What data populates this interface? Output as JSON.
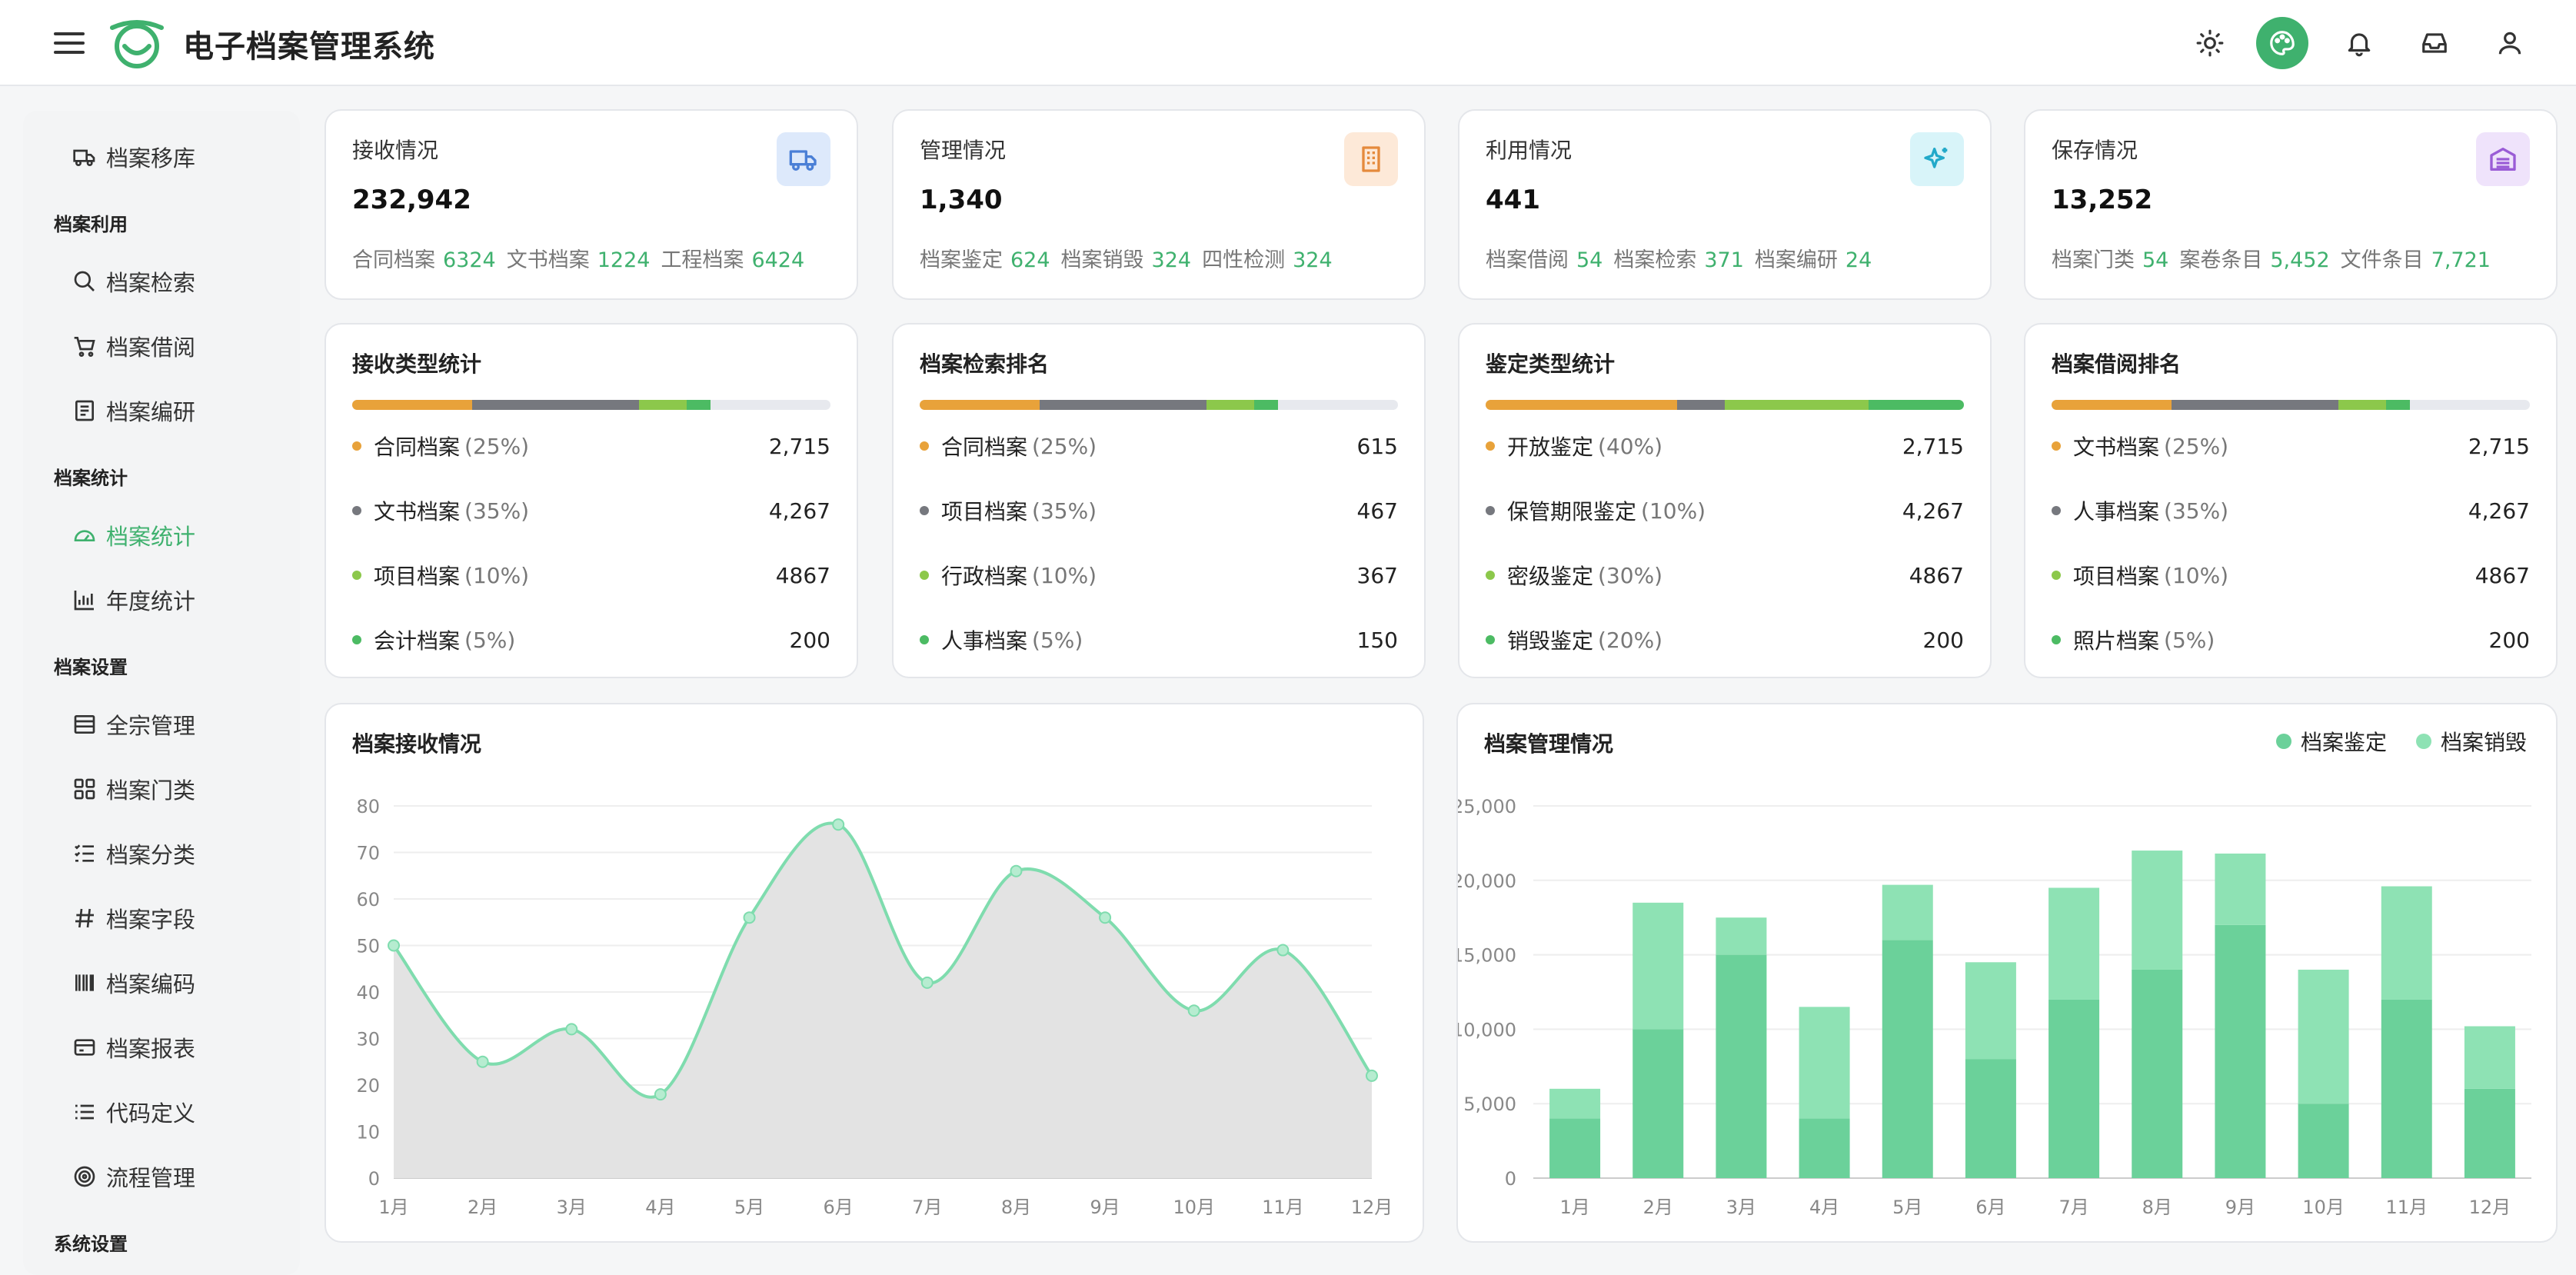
{
  "header": {
    "title": "电子档案管理系统",
    "icons": [
      "menu-icon",
      "logo-icon",
      "sun-icon",
      "palette-icon",
      "bell-icon",
      "inbox-icon",
      "user-icon"
    ]
  },
  "sidebar": {
    "items": [
      {
        "type": "item",
        "label": "档案移库",
        "icon": "truck-icon"
      },
      {
        "type": "group",
        "label": "档案利用"
      },
      {
        "type": "item",
        "label": "档案检索",
        "icon": "search-icon"
      },
      {
        "type": "item",
        "label": "档案借阅",
        "icon": "cart-icon"
      },
      {
        "type": "item",
        "label": "档案编研",
        "icon": "document-icon"
      },
      {
        "type": "group",
        "label": "档案统计"
      },
      {
        "type": "item",
        "label": "档案统计",
        "icon": "dashboard-icon",
        "active": true
      },
      {
        "type": "item",
        "label": "年度统计",
        "icon": "bar-chart-icon"
      },
      {
        "type": "group",
        "label": "档案设置"
      },
      {
        "type": "item",
        "label": "全宗管理",
        "icon": "storage-icon"
      },
      {
        "type": "item",
        "label": "档案门类",
        "icon": "grid-icon"
      },
      {
        "type": "item",
        "label": "档案分类",
        "icon": "list-check-icon"
      },
      {
        "type": "item",
        "label": "档案字段",
        "icon": "hash-icon"
      },
      {
        "type": "item",
        "label": "档案编码",
        "icon": "barcode-icon"
      },
      {
        "type": "item",
        "label": "档案报表",
        "icon": "card-icon"
      },
      {
        "type": "item",
        "label": "代码定义",
        "icon": "list-icon"
      },
      {
        "type": "item",
        "label": "流程管理",
        "icon": "target-icon"
      },
      {
        "type": "group",
        "label": "系统设置"
      }
    ]
  },
  "summary": [
    {
      "title": "接收情况",
      "value": "232,942",
      "icon": "truck-icon",
      "icon_color": "#4a7fd6",
      "icon_bg": "#dde9fb",
      "sub": [
        {
          "label": "合同档案",
          "value": "6324"
        },
        {
          "label": "文书档案",
          "value": "1224"
        },
        {
          "label": "工程档案",
          "value": "6424"
        }
      ]
    },
    {
      "title": "管理情况",
      "value": "1,340",
      "icon": "building-icon",
      "icon_color": "#e58a3c",
      "icon_bg": "#fde9d8",
      "sub": [
        {
          "label": "档案鉴定",
          "value": "624"
        },
        {
          "label": "档案销毁",
          "value": "324"
        },
        {
          "label": "四性检测",
          "value": "324"
        }
      ]
    },
    {
      "title": "利用情况",
      "value": "441",
      "icon": "sparkle-icon",
      "icon_color": "#22a9c9",
      "icon_bg": "#d8f4f9",
      "sub": [
        {
          "label": "档案借阅",
          "value": "54"
        },
        {
          "label": "档案检索",
          "value": "371"
        },
        {
          "label": "档案编研",
          "value": "24"
        }
      ]
    },
    {
      "title": "保存情况",
      "value": "13,252",
      "icon": "warehouse-icon",
      "icon_color": "#9a5cd6",
      "icon_bg": "#efe3fb",
      "sub": [
        {
          "label": "档案门类",
          "value": "54"
        },
        {
          "label": "案卷条目",
          "value": "5,452"
        },
        {
          "label": "文件条目",
          "value": "7,721"
        }
      ]
    }
  ],
  "stats": [
    {
      "title": "接收类型统计",
      "segments": [
        25,
        35,
        10,
        5
      ],
      "rows": [
        {
          "label": "合同档案",
          "pct": "(25%)",
          "value": "2,715"
        },
        {
          "label": "文书档案",
          "pct": "(35%)",
          "value": "4,267"
        },
        {
          "label": "项目档案",
          "pct": "(10%)",
          "value": "4867"
        },
        {
          "label": "会计档案",
          "pct": "(5%)",
          "value": "200"
        }
      ]
    },
    {
      "title": "档案检索排名",
      "segments": [
        25,
        35,
        10,
        5
      ],
      "rows": [
        {
          "label": "合同档案",
          "pct": "(25%)",
          "value": "615"
        },
        {
          "label": "项目档案",
          "pct": "(35%)",
          "value": "467"
        },
        {
          "label": "行政档案",
          "pct": "(10%)",
          "value": "367"
        },
        {
          "label": "人事档案",
          "pct": "(5%)",
          "value": "150"
        }
      ]
    },
    {
      "title": "鉴定类型统计",
      "segments": [
        40,
        10,
        30,
        20
      ],
      "rows": [
        {
          "label": "开放鉴定",
          "pct": "(40%)",
          "value": "2,715"
        },
        {
          "label": "保管期限鉴定",
          "pct": "(10%)",
          "value": "4,267"
        },
        {
          "label": "密级鉴定",
          "pct": "(30%)",
          "value": "4867"
        },
        {
          "label": "销毁鉴定",
          "pct": "(20%)",
          "value": "200"
        }
      ]
    },
    {
      "title": "档案借阅排名",
      "segments": [
        25,
        35,
        10,
        5
      ],
      "rows": [
        {
          "label": "文书档案",
          "pct": "(25%)",
          "value": "2,715"
        },
        {
          "label": "人事档案",
          "pct": "(35%)",
          "value": "4,267"
        },
        {
          "label": "项目档案",
          "pct": "(10%)",
          "value": "4867"
        },
        {
          "label": "照片档案",
          "pct": "(5%)",
          "value": "200"
        }
      ]
    }
  ],
  "colors": {
    "seg": [
      "#e8a23a",
      "#76787e",
      "#8cc84b",
      "#4cbb63"
    ],
    "accent": "#3fb16e",
    "line": "#7fdcae",
    "area": "#e3e3e3",
    "bar_dark": "#6bd19a",
    "bar_light": "#8ee2b4"
  },
  "chart_data": [
    {
      "type": "line",
      "title": "档案接收情况",
      "categories": [
        "1月",
        "2月",
        "3月",
        "4月",
        "5月",
        "6月",
        "7月",
        "8月",
        "9月",
        "10月",
        "11月",
        "12月"
      ],
      "values": [
        50,
        25,
        32,
        18,
        56,
        76,
        42,
        66,
        56,
        36,
        49,
        22
      ],
      "ylim": [
        0,
        80
      ],
      "yticks": [
        "0",
        "10",
        "20",
        "30",
        "40",
        "50",
        "60",
        "70",
        "80"
      ]
    },
    {
      "type": "bar",
      "title": "档案管理情况",
      "stacked": true,
      "categories": [
        "1月",
        "2月",
        "3月",
        "4月",
        "5月",
        "6月",
        "7月",
        "8月",
        "9月",
        "10月",
        "11月",
        "12月"
      ],
      "series": [
        {
          "name": "档案鉴定",
          "values": [
            4000,
            10000,
            15000,
            4000,
            16000,
            8000,
            12000,
            14000,
            17000,
            5000,
            12000,
            6000
          ]
        },
        {
          "name": "档案销毁",
          "values": [
            2000,
            8500,
            2500,
            7500,
            3700,
            6500,
            7500,
            8000,
            4800,
            9000,
            7600,
            4200
          ]
        }
      ],
      "ylim": [
        0,
        25000
      ],
      "yticks": [
        "0",
        "5,000",
        "10,000",
        "15,000",
        "20,000",
        "25,000"
      ]
    }
  ]
}
